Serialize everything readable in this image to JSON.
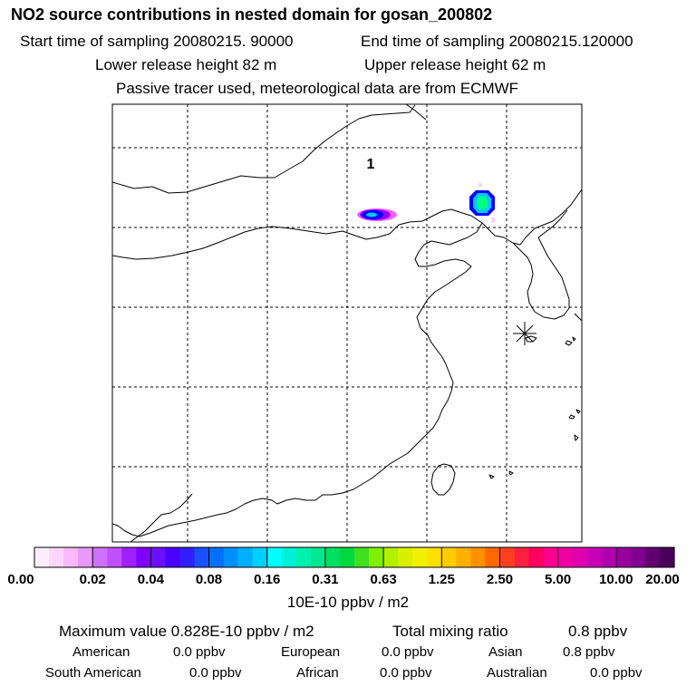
{
  "header": {
    "title": "NO2 source contributions in nested domain for gosan_200802",
    "start_time": "Start time of sampling 20080215. 90000",
    "end_time": "End time of sampling 20080215.120000",
    "lower_release": "Lower release height   82 m",
    "upper_release": "Upper release height   62 m",
    "tracer_note": "Passive tracer used, meteorological data are from ECMWF"
  },
  "map": {
    "marker_label": "1",
    "site_marker": "asterisk-icon",
    "plume_colors": [
      "#0000ff",
      "#00c8ff",
      "#00ff80",
      "#ff00ff",
      "#9000ff"
    ]
  },
  "colorbar": {
    "labels": [
      "0.00",
      "0.02",
      "0.04",
      "0.08",
      "0.16",
      "0.31",
      "0.63",
      "1.25",
      "2.50",
      "5.00",
      "10.00",
      "20.00"
    ],
    "colors": [
      "#ffeeff",
      "#ffd6ff",
      "#f9b8ff",
      "#e898ff",
      "#d070ff",
      "#c050ff",
      "#a020ff",
      "#8000ff",
      "#6a10ff",
      "#4a00ff",
      "#3020ff",
      "#1a50ff",
      "#0070ff",
      "#0090ff",
      "#00b0ff",
      "#00d0ff",
      "#00ffff",
      "#00f0d8",
      "#00f0b0",
      "#00e890",
      "#00e060",
      "#00d840",
      "#40e020",
      "#80f000",
      "#b0f000",
      "#d8f000",
      "#f0f000",
      "#ffe000",
      "#ffcc00",
      "#ffb000",
      "#ff9000",
      "#ff6800",
      "#ff4020",
      "#ff2040",
      "#ff0060",
      "#ff0090",
      "#f000a0",
      "#e000b0",
      "#c800b8",
      "#b000b0",
      "#9800a0",
      "#800090",
      "#600070",
      "#480058"
    ],
    "units": "10E-10 ppbv / m2"
  },
  "stats": {
    "maximum": "Maximum value  0.828E-10 ppbv / m2",
    "total_label": "Total mixing ratio",
    "total_value": "0.8 ppbv"
  },
  "regions": [
    {
      "name": "American",
      "value": "0.0 ppbv"
    },
    {
      "name": "European",
      "value": "0.0 ppbv"
    },
    {
      "name": "Asian",
      "value": "0.8 ppbv"
    },
    {
      "name": "South American",
      "value": "0.0 ppbv"
    },
    {
      "name": "African",
      "value": "0.0 ppbv"
    },
    {
      "name": "Australian",
      "value": "0.0 ppbv"
    }
  ]
}
